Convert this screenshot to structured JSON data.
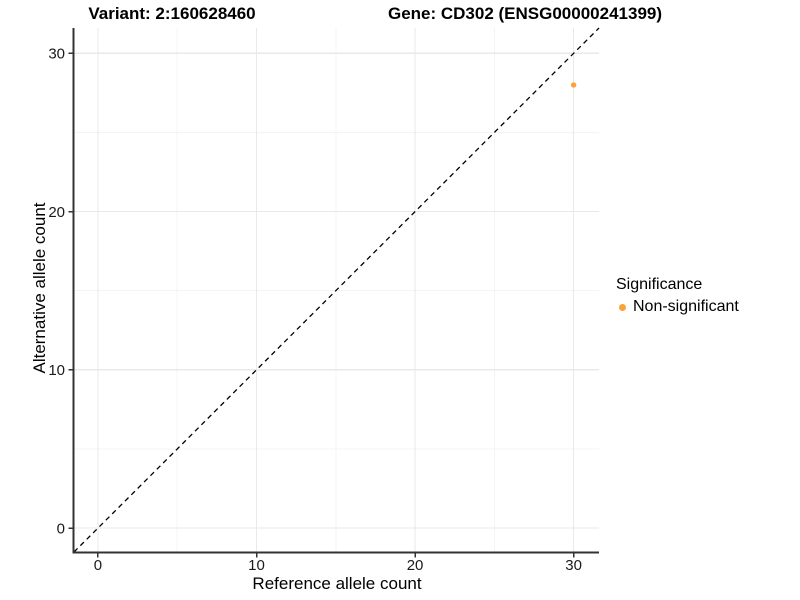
{
  "titles": {
    "variant": "Variant: 2:160628460",
    "gene": "Gene: CD302 (ENSG00000241399)"
  },
  "axes": {
    "x_label": "Reference allele count",
    "y_label": "Alternative allele count"
  },
  "legend": {
    "title": "Significance",
    "items": [
      {
        "label": "Non-significant",
        "color": "#FAA338"
      }
    ]
  },
  "colors": {
    "background": "#ffffff",
    "axis_line": "#333333",
    "tick_label": "#1a1a1a",
    "grid_major": "#e9e9e9",
    "grid_minor": "#f4f4f4",
    "reference_line": "#000000",
    "point": "#FAA338"
  },
  "chart_data": {
    "type": "scatter",
    "title": "",
    "xlabel": "Reference allele count",
    "ylabel": "Alternative allele count",
    "xlim": [
      -1.51,
      31.6
    ],
    "ylim": [
      -1.51,
      31.6
    ],
    "x_ticks": [
      0,
      10,
      20,
      30
    ],
    "y_ticks": [
      0,
      10,
      20,
      30
    ],
    "x_minor_ticks": [
      5,
      15,
      25
    ],
    "y_minor_ticks": [
      5,
      15,
      25
    ],
    "grid": true,
    "legend_position": "right",
    "series": [
      {
        "name": "Non-significant",
        "color": "#FAA338",
        "points": [
          {
            "x": 30,
            "y": 28
          }
        ]
      }
    ],
    "reference_line": {
      "type": "identity",
      "style": "dashed",
      "color": "#000000",
      "from": [
        -1.51,
        -1.51
      ],
      "to": [
        31.6,
        31.6
      ]
    }
  }
}
